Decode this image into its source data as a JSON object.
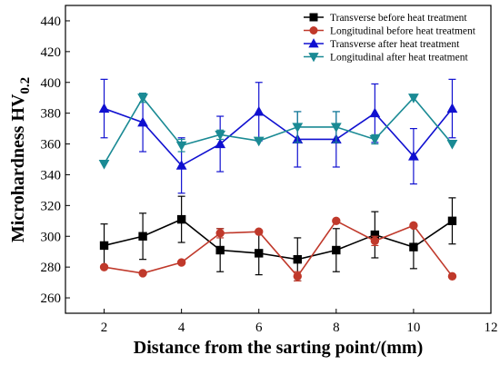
{
  "chart_data": {
    "type": "line",
    "xlabel": "Distance from the sarting point/(mm)",
    "ylabel": "Microhardness HV",
    "ylabel_subscript": "0.2",
    "xlim": [
      1,
      12
    ],
    "ylim": [
      250,
      450
    ],
    "xticks": [
      2,
      4,
      6,
      8,
      10,
      12
    ],
    "yticks": [
      260,
      280,
      300,
      320,
      340,
      360,
      380,
      400,
      420,
      440
    ],
    "x": [
      2,
      3,
      4,
      5,
      6,
      7,
      8,
      9,
      10,
      11
    ],
    "legend_position": "top-right",
    "series": [
      {
        "name": "Transverse before heat treatment",
        "color": "#000000",
        "marker": "square",
        "values": [
          294,
          300,
          311,
          291,
          289,
          285,
          291,
          301,
          293,
          310
        ],
        "errors": [
          14,
          15,
          15,
          14,
          14,
          14,
          14,
          15,
          14,
          15
        ]
      },
      {
        "name": "Longitudinal before heat treatment",
        "color": "#c0392b",
        "marker": "circle",
        "values": [
          280,
          276,
          283,
          302,
          303,
          274,
          310,
          297,
          307,
          274
        ],
        "errors": [
          0,
          0,
          0,
          3,
          0,
          3,
          0,
          3,
          0,
          0
        ]
      },
      {
        "name": "Transverse after heat treatment",
        "color": "#1010d0",
        "marker": "triangle-up",
        "values": [
          383,
          374,
          346,
          360,
          381,
          363,
          363,
          380,
          352,
          383
        ],
        "errors": [
          19,
          19,
          18,
          18,
          19,
          18,
          18,
          19,
          18,
          19
        ]
      },
      {
        "name": "Longitudinal after heat treatment",
        "color": "#1a8a94",
        "marker": "triangle-down",
        "values": [
          347,
          390,
          359,
          366,
          362,
          371,
          371,
          363,
          390,
          360
        ],
        "errors": [
          0,
          3,
          4,
          3,
          0,
          10,
          10,
          3,
          0,
          0
        ]
      }
    ]
  }
}
